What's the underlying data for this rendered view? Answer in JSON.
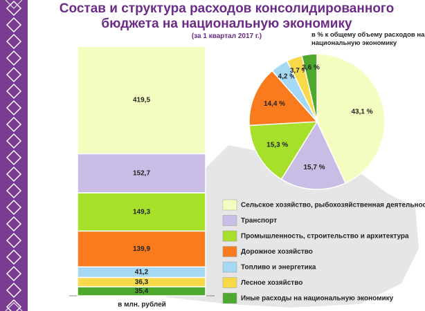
{
  "title": "Состав и структура расходов консолидированного бюджета на национальную экономику",
  "subtitle": "(за 1 квартал 2017 г.)",
  "chart_data": [
    {
      "type": "bar",
      "x_label": "в млн. рублей",
      "series": [
        {
          "name": "Сельское хозяйство, рыбохозяйственная деятельность",
          "color": "#f5fcc0",
          "values": [
            419.5
          ],
          "value_labels": [
            "419,5"
          ]
        },
        {
          "name": "Транспорт",
          "color": "#c9bde6",
          "values": [
            152.7
          ],
          "value_labels": [
            "152,7"
          ]
        },
        {
          "name": "Промышленность, строительство и архитектура",
          "color": "#a6e02a",
          "values": [
            149.3
          ],
          "value_labels": [
            "149,3"
          ]
        },
        {
          "name": "Дорожное хозяйство",
          "color": "#fa7b1e",
          "values": [
            139.9
          ],
          "value_labels": [
            "139,9"
          ]
        },
        {
          "name": "Топливо и энергетика",
          "color": "#a5d8f2",
          "values": [
            41.2
          ],
          "value_labels": [
            "41,2"
          ]
        },
        {
          "name": "Лесное хозяйство",
          "color": "#f7d94a",
          "values": [
            36.3
          ],
          "value_labels": [
            "36,3"
          ]
        },
        {
          "name": "Иные расходы на национальную экономику",
          "color": "#4ea82e",
          "values": [
            35.4
          ],
          "value_labels": [
            "35,4"
          ]
        }
      ]
    },
    {
      "type": "pie",
      "title": "в % к общему объему расходов на национальную экономику",
      "values": [
        43.1,
        15.7,
        15.3,
        14.4,
        4.2,
        3.7,
        3.6
      ],
      "value_labels": [
        "43,1 %",
        "15,7 %",
        "15,3 %",
        "14,4 %",
        "4,2 %",
        "3,7 %",
        "3,6 %"
      ],
      "colors": [
        "#f5fcc0",
        "#c9bde6",
        "#a6e02a",
        "#fa7b1e",
        "#a5d8f2",
        "#f7d94a",
        "#4ea82e"
      ]
    }
  ]
}
